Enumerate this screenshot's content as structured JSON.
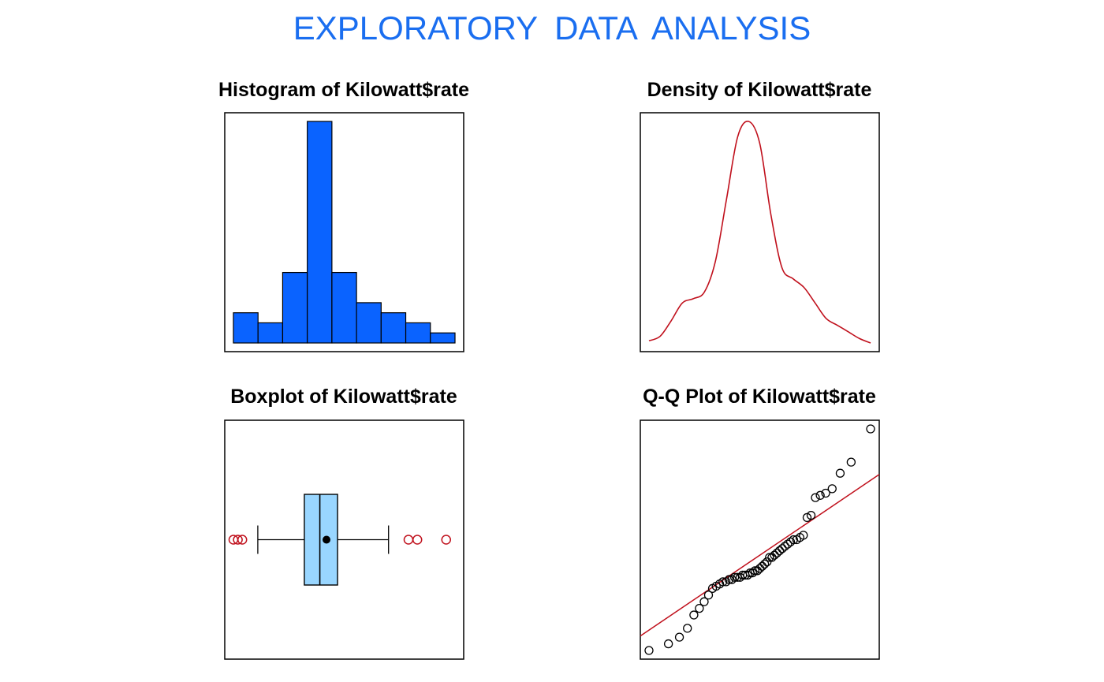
{
  "page": {
    "title": "EXPLORATORY  DATA  ANALYSIS",
    "title_color": "#1a6ef0"
  },
  "colors": {
    "hist_fill": "#0a63ff",
    "density_line": "#c0101c",
    "box_fill": "#99d6ff",
    "outlier": "#c0101c",
    "qq_line": "#c0101c",
    "frame": "#000000"
  },
  "chart_data": [
    {
      "type": "bar",
      "title": "Histogram of Kilowatt$rate",
      "bin_count": 9,
      "counts": [
        3,
        2,
        7,
        22,
        7,
        4,
        3,
        2,
        1
      ],
      "axes_shown": false
    },
    {
      "type": "line",
      "title": "Density of Kilowatt$rate",
      "relative_density": [
        0.01,
        0.03,
        0.1,
        0.18,
        0.2,
        0.23,
        0.37,
        0.65,
        0.93,
        1.0,
        0.9,
        0.58,
        0.34,
        0.29,
        0.25,
        0.18,
        0.11,
        0.08,
        0.05,
        0.02,
        0.0
      ],
      "axes_shown": false
    },
    {
      "type": "boxplot",
      "title": "Boxplot of Kilowatt$rate",
      "relative_scale": {
        "whisker_low": 0.11,
        "q1": 0.32,
        "median": 0.39,
        "mean": 0.42,
        "q3": 0.47,
        "whisker_high": 0.7,
        "outliers": [
          0.0,
          0.02,
          0.04,
          0.79,
          0.83,
          0.96
        ]
      },
      "axes_shown": false
    },
    {
      "type": "scatter",
      "title": "Q-Q Plot of Kilowatt$rate",
      "sorted_relative_values": [
        0.0,
        0.03,
        0.06,
        0.1,
        0.16,
        0.19,
        0.22,
        0.25,
        0.28,
        0.29,
        0.3,
        0.31,
        0.31,
        0.32,
        0.32,
        0.33,
        0.33,
        0.33,
        0.34,
        0.34,
        0.34,
        0.35,
        0.35,
        0.36,
        0.36,
        0.37,
        0.38,
        0.39,
        0.4,
        0.42,
        0.42,
        0.43,
        0.44,
        0.45,
        0.46,
        0.47,
        0.48,
        0.49,
        0.5,
        0.5,
        0.51,
        0.52,
        0.6,
        0.61,
        0.69,
        0.7,
        0.71,
        0.73,
        0.8,
        0.85,
        1.0
      ],
      "reference_line": {
        "intercept": 0.09,
        "slope": 0.68
      },
      "axes_shown": false
    }
  ]
}
